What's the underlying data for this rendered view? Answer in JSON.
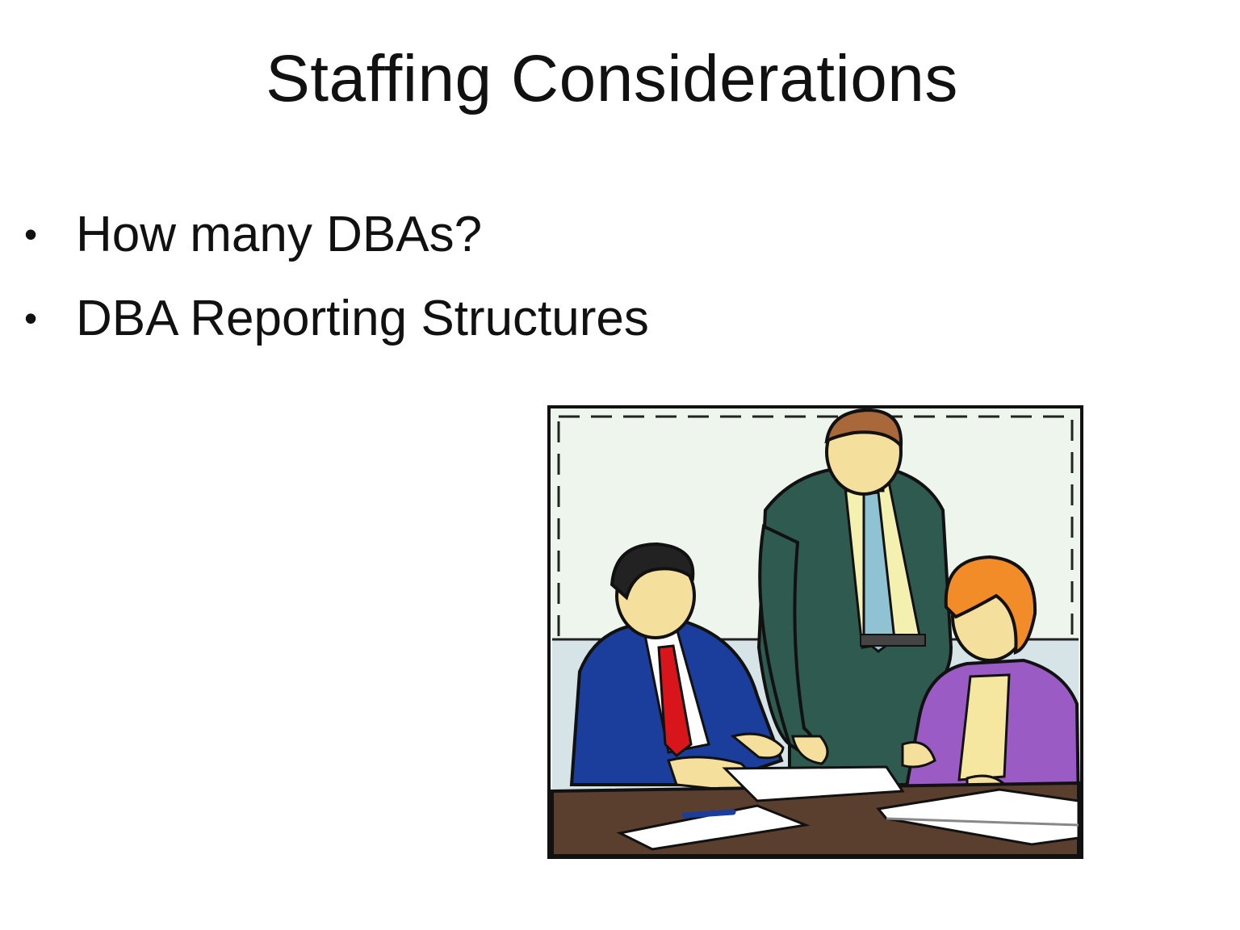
{
  "slide": {
    "title": "Staffing Considerations",
    "bullets": [
      {
        "text": "How many DBAs?"
      },
      {
        "text": "DBA Reporting Structures"
      }
    ],
    "illustration": {
      "icon": "office-meeting-clipart",
      "colors": {
        "wall": "#eef5ec",
        "desk": "#5a3f2e",
        "blue_suit": "#1b3d9c",
        "green_suit": "#2f5a4f",
        "purple_jacket": "#9b5bc4",
        "red_tie": "#d9151c",
        "skin": "#f4df9c",
        "orange_hair": "#f28c28"
      }
    }
  }
}
